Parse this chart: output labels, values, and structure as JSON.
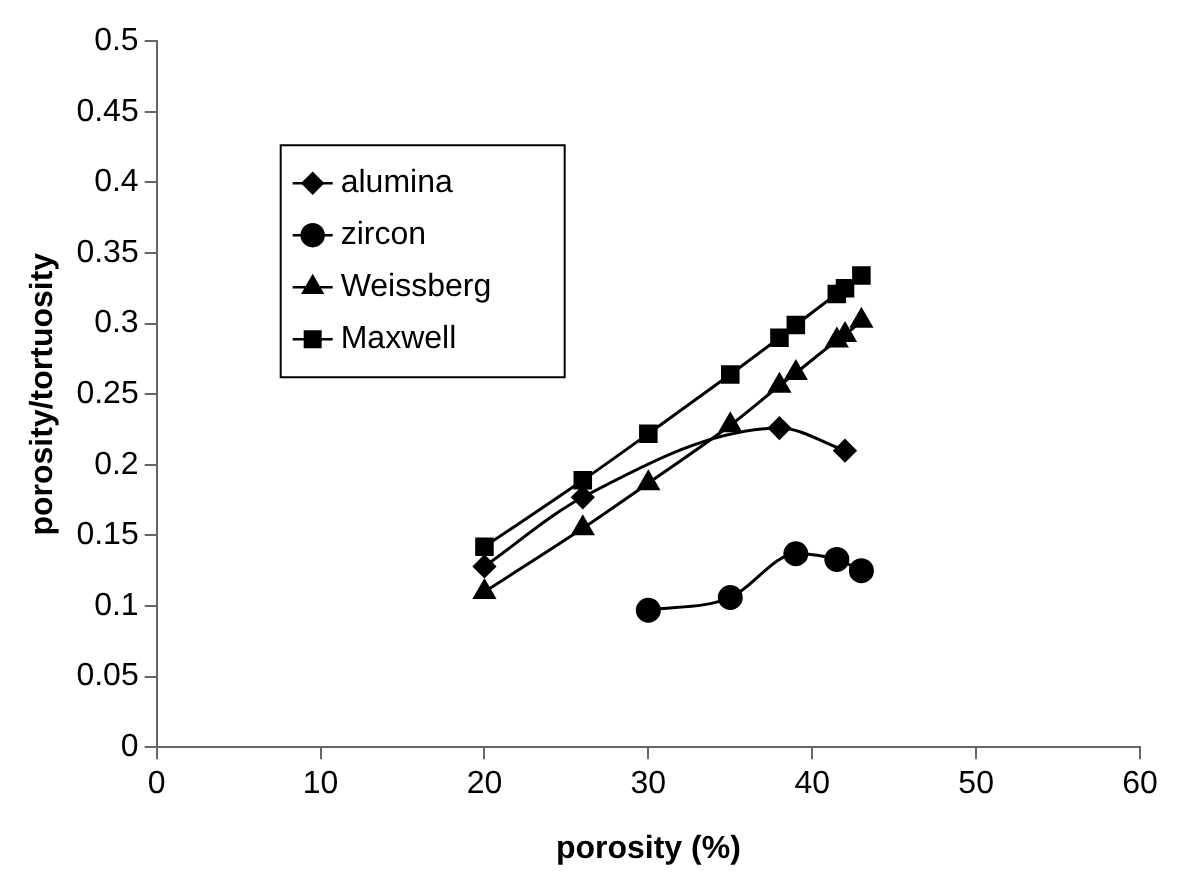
{
  "chart_data": {
    "type": "line",
    "xlabel": "porosity (%)",
    "ylabel": "porosity/tortuosity",
    "xlim": [
      0,
      60
    ],
    "xticks": [
      0,
      10,
      20,
      30,
      40,
      50,
      60
    ],
    "ylim": [
      0,
      0.5
    ],
    "yticks": [
      0,
      {
        "value": 0.05,
        "label": "0.05"
      },
      0.1,
      {
        "value": 0.15,
        "label": "0.15"
      },
      0.2,
      {
        "value": 0.25,
        "label": "0.25"
      },
      0.3,
      {
        "value": 0.35,
        "label": "0.35"
      },
      0.4,
      {
        "value": 0.45,
        "label": "0.45"
      },
      0.5
    ],
    "grid": false,
    "legend": "top left",
    "line_style": "solid",
    "series": [
      {
        "name": "alumina",
        "color": "#000000",
        "marker": "diamond",
        "x": [
          20,
          26,
          38,
          42
        ],
        "values": [
          0.128,
          0.177,
          0.226,
          0.21
        ]
      },
      {
        "name": "zircon",
        "color": "#000000",
        "marker": "circle",
        "x": [
          30,
          35,
          39,
          41.5,
          43
        ],
        "values": [
          0.097,
          0.106,
          0.137,
          0.133,
          0.125
        ]
      },
      {
        "name": "Weissberg",
        "color": "#000000",
        "marker": "triangle",
        "x": [
          20,
          26,
          30,
          35,
          38,
          39,
          41.5,
          42,
          43
        ],
        "values": [
          0.11,
          0.155,
          0.187,
          0.228,
          0.256,
          0.265,
          0.288,
          0.292,
          0.302
        ]
      },
      {
        "name": "Maxwell",
        "color": "#000000",
        "marker": "square",
        "x": [
          20,
          26,
          30,
          35,
          38,
          39,
          41.5,
          42,
          43
        ],
        "values": [
          0.142,
          0.189,
          0.222,
          0.264,
          0.29,
          0.299,
          0.321,
          0.325,
          0.334
        ]
      }
    ]
  }
}
